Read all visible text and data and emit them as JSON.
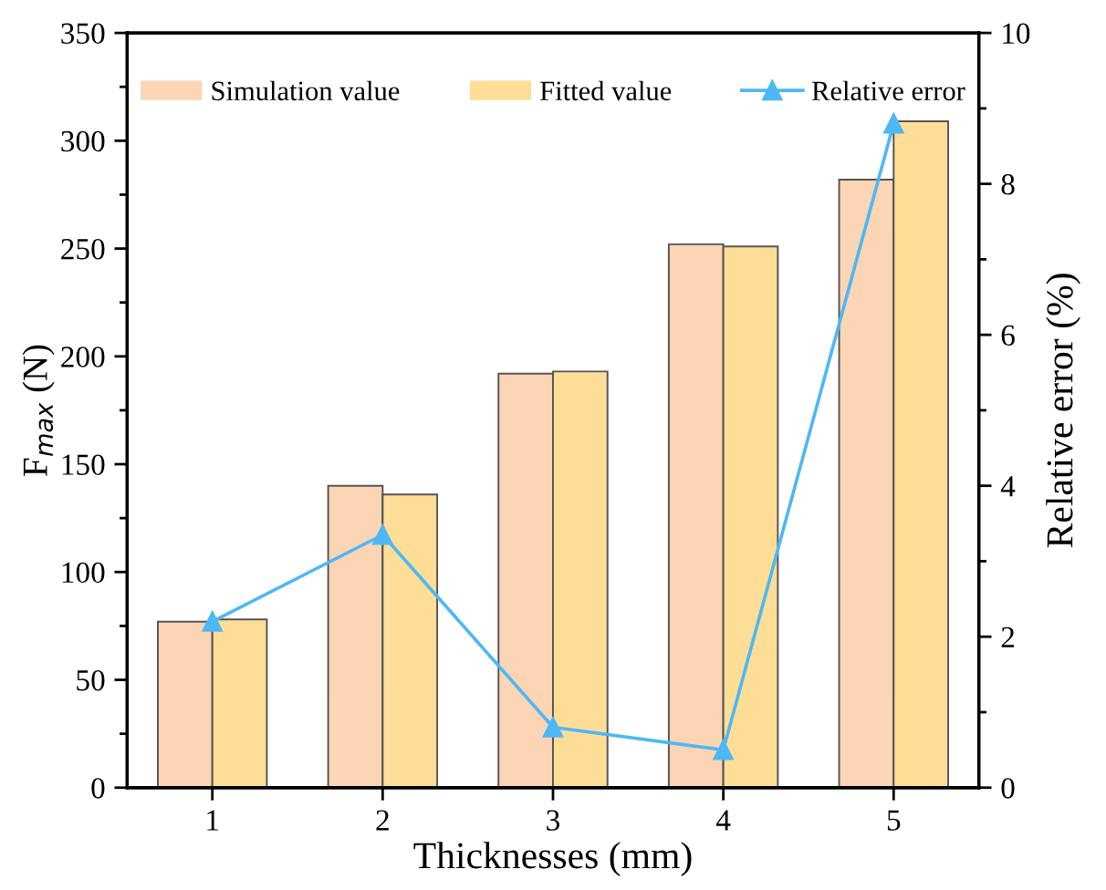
{
  "chart_data": {
    "type": "bar",
    "xlabel": "Thicknesses (mm)",
    "ylabel": "F$_{max}$ (N)",
    "y2label": "Relative error (%)",
    "categories": [
      "1",
      "2",
      "3",
      "4",
      "5"
    ],
    "series": [
      {
        "name": "Simulation value",
        "color": "#fcd5b5",
        "values": [
          77,
          140,
          192,
          252,
          282
        ]
      },
      {
        "name": "Fitted value",
        "color": "#fede96",
        "values": [
          78,
          136,
          193,
          251,
          309
        ]
      },
      {
        "name": "Relative error",
        "type": "line",
        "axis": "y2",
        "color": "#4db8f5",
        "marker": "triangle",
        "values": [
          2.2,
          3.35,
          0.8,
          0.5,
          8.8
        ]
      }
    ],
    "ylim": [
      0,
      350
    ],
    "yticks": [
      0,
      {
        "value": 25,
        "label": null
      },
      50,
      {
        "value": 75,
        "label": null
      },
      100,
      {
        "value": 125,
        "label": null
      },
      150,
      {
        "value": 175,
        "label": null
      },
      200,
      {
        "value": 225,
        "label": null
      },
      250,
      {
        "value": 275,
        "label": null
      },
      300,
      {
        "value": 325,
        "label": null
      },
      350
    ],
    "y2lim": [
      0,
      10
    ],
    "y2ticks": [
      0,
      {
        "value": 1,
        "label": null
      },
      2,
      {
        "value": 3,
        "label": null
      },
      4,
      {
        "value": 5,
        "label": null
      },
      6,
      {
        "value": 7,
        "label": null
      },
      8,
      {
        "value": 9,
        "label": null
      },
      10
    ],
    "legend": "top",
    "grid": false
  }
}
